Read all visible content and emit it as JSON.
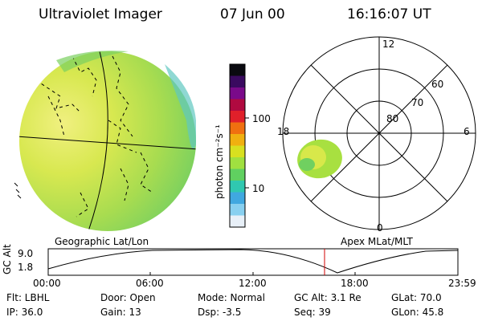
{
  "header": {
    "instrument": "Ultraviolet Imager",
    "date": "07 Jun 00",
    "time": "16:16:07 UT"
  },
  "colorbar": {
    "unit_label": "photon cm⁻²s⁻¹",
    "ticks": [
      "100",
      "10"
    ],
    "colors": [
      "#0a0a10",
      "#3a0a60",
      "#7a0a8a",
      "#b00a40",
      "#e0202a",
      "#f07010",
      "#f0b010",
      "#d8e020",
      "#a0e040",
      "#60d060",
      "#30c8b0",
      "#40a8e0",
      "#88d0f0",
      "#e8f0f8"
    ]
  },
  "geo_panel": {
    "caption": "Geographic Lat/Lon"
  },
  "polar_panel": {
    "caption": "Apex MLat/MLT",
    "mlt_labels": {
      "top": "12",
      "right": "6",
      "bottom": "0",
      "left": "18"
    },
    "lat_labels": [
      "60",
      "70",
      "80"
    ]
  },
  "altitude_plot": {
    "axis_label": "GC Alt",
    "y_ticks": [
      "9.0",
      "1.8"
    ],
    "x_ticks": [
      "00:00",
      "06:00",
      "12:00",
      "18:00",
      "23:59"
    ]
  },
  "status": {
    "filter": "Flt: LBHL",
    "ip": "IP: 36.0",
    "door": "Door: Open",
    "gain": "Gain: 13",
    "mode": "Mode: Normal",
    "dsp": "Dsp:   -3.5",
    "gc_alt": "GC Alt: 3.1 Re",
    "seq": "Seq: 39",
    "glat": "GLat:  70.0",
    "glon": "GLon:  45.8"
  }
}
